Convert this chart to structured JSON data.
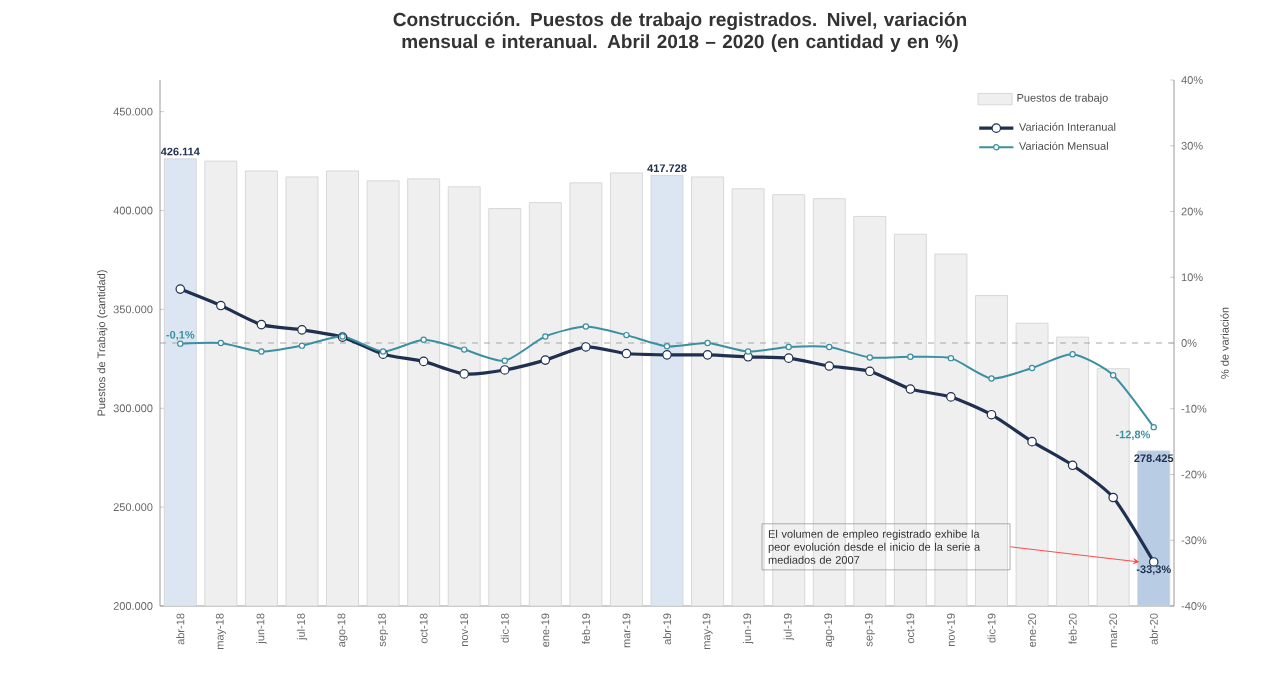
{
  "chart_data": {
    "type": "bar",
    "title": "Construcción. Puestos de trabajo registrados. Nivel, variación mensual e interanual. Abril 2018 – 2020 (en cantidad y en %)",
    "ylabel": "Puestos de Trabajo (cantidad)",
    "y2label": "% de variación",
    "categories": [
      "abr-18",
      "may-18",
      "jun-18",
      "jul-18",
      "ago-18",
      "sep-18",
      "oct-18",
      "nov-18",
      "dic-18",
      "ene-19",
      "feb-19",
      "mar-19",
      "abr-19",
      "may-19",
      "jun-19",
      "jul-19",
      "ago-19",
      "sep-19",
      "oct-19",
      "nov-19",
      "dic-19",
      "ene-20",
      "feb-20",
      "mar-20",
      "abr-20"
    ],
    "series": [
      {
        "name": "Puestos de trabajo",
        "color": "#efefef",
        "colors": [
          "#dce6f2",
          "#efefef",
          "#efefef",
          "#efefef",
          "#efefef",
          "#efefef",
          "#efefef",
          "#efefef",
          "#efefef",
          "#efefef",
          "#efefef",
          "#efefef",
          "#dce6f2",
          "#efefef",
          "#efefef",
          "#efefef",
          "#efefef",
          "#efefef",
          "#efefef",
          "#efefef",
          "#efefef",
          "#efefef",
          "#efefef",
          "#efefef",
          "#b8cce4"
        ],
        "values": [
          426114,
          425000,
          420000,
          417000,
          420000,
          415000,
          416000,
          412000,
          401000,
          404000,
          414000,
          419000,
          417728,
          417000,
          411000,
          408000,
          406000,
          397000,
          388000,
          378000,
          357000,
          343000,
          336000,
          320000,
          278425
        ],
        "value_labels": [
          "426.114",
          null,
          null,
          null,
          null,
          null,
          null,
          null,
          null,
          null,
          null,
          null,
          "417.728",
          null,
          null,
          null,
          null,
          null,
          null,
          null,
          null,
          null,
          null,
          null,
          "278.425"
        ]
      },
      {
        "name": "Variación Interanual",
        "type": "line",
        "axis": "y2",
        "color": "#1f3050",
        "values": [
          8.2,
          5.7,
          2.8,
          2.0,
          0.9,
          -1.7,
          -2.8,
          -4.7,
          -4.1,
          -2.6,
          -0.6,
          -1.6,
          -1.8,
          -1.8,
          -2.1,
          -2.3,
          -3.5,
          -4.3,
          -7.0,
          -8.2,
          -10.9,
          -15.0,
          -18.6,
          -23.5,
          -33.3
        ],
        "value_labels": [
          null,
          null,
          null,
          null,
          null,
          null,
          null,
          null,
          null,
          null,
          null,
          null,
          null,
          null,
          null,
          null,
          null,
          null,
          null,
          null,
          null,
          null,
          null,
          null,
          "-33,3%"
        ]
      },
      {
        "name": "Variación Mensual",
        "type": "line",
        "axis": "y2",
        "color": "#3a8fa0",
        "values": [
          -0.1,
          0.0,
          -1.3,
          -0.4,
          1.0,
          -1.3,
          0.5,
          -1.0,
          -2.7,
          1.0,
          2.5,
          1.2,
          -0.5,
          0.0,
          -1.3,
          -0.6,
          -0.6,
          -2.2,
          -2.1,
          -2.3,
          -5.4,
          -3.8,
          -1.7,
          -4.9,
          -12.8
        ],
        "value_labels": [
          "-0,1%",
          null,
          null,
          null,
          null,
          null,
          null,
          null,
          null,
          null,
          null,
          null,
          null,
          null,
          null,
          null,
          null,
          null,
          null,
          null,
          null,
          null,
          null,
          null,
          "-12,8%"
        ]
      }
    ],
    "ylim": [
      200000,
      466000
    ],
    "yticks": [
      {
        "value": 200000,
        "label": "200.000"
      },
      {
        "value": 250000,
        "label": "250.000"
      },
      {
        "value": 300000,
        "label": "300.000"
      },
      {
        "value": 350000,
        "label": "350.000"
      },
      {
        "value": 400000,
        "label": "400.000"
      },
      {
        "value": 450000,
        "label": "450.000"
      }
    ],
    "y2lim": [
      -40,
      40
    ],
    "y2ticks": [
      {
        "value": -40,
        "label": "-40%"
      },
      {
        "value": -30,
        "label": "-30%"
      },
      {
        "value": -20,
        "label": "-20%"
      },
      {
        "value": -10,
        "label": "-10%"
      },
      {
        "value": 0,
        "label": "0%"
      },
      {
        "value": 10,
        "label": "10%"
      },
      {
        "value": 20,
        "label": "20%"
      },
      {
        "value": 30,
        "label": "30%"
      },
      {
        "value": 40,
        "label": "40%"
      }
    ],
    "ref_lines": [
      {
        "axis": "y2",
        "value": 0,
        "color": "#a6a6a6",
        "line_style": "dashed"
      }
    ],
    "annotations": [
      "El volumen de empleo registrado exhibe la peor evolución desde el inicio de la serie a mediados de 2007"
    ],
    "legend": "top right",
    "marker": "circle",
    "line_style": "solid",
    "grid": false
  }
}
